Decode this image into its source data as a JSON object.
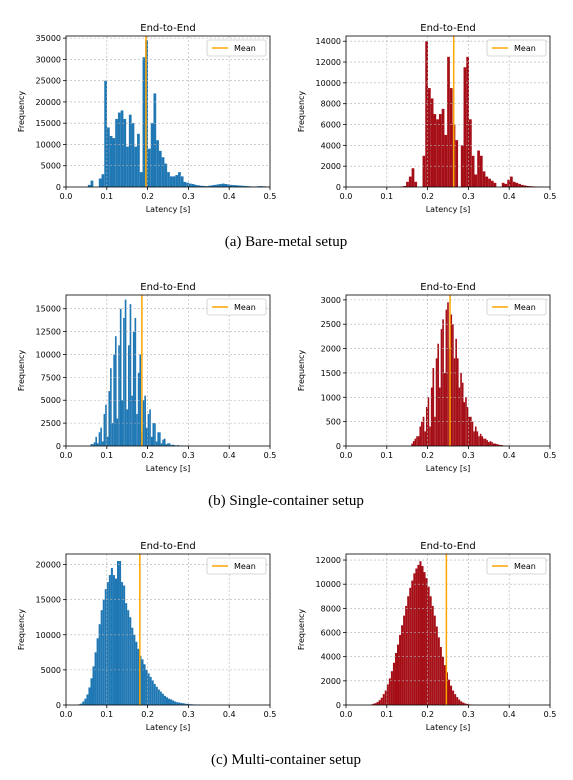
{
  "colors": {
    "blue": "#1f77b4",
    "red": "#a50e16",
    "mean": "#ffa500",
    "grid": "#b0b0b0"
  },
  "captions": [
    "(a) Bare-metal setup",
    "(b) Single-container setup",
    "(c) Multi-container setup"
  ],
  "chart_data": [
    {
      "type": "bar",
      "title": "End-to-End",
      "xlabel": "Latency [s]",
      "ylabel": "Frequency",
      "color": "blue",
      "legend": "Mean",
      "legend_loc": "upper right",
      "grid": true,
      "xlim": [
        0,
        0.5
      ],
      "ylim": [
        0,
        35500
      ],
      "xticks": [
        "0.0",
        "0.1",
        "0.2",
        "0.3",
        "0.4",
        "0.5"
      ],
      "yticks": [
        "0",
        "5000",
        "10000",
        "15000",
        "20000",
        "25000",
        "30000",
        "35000"
      ],
      "ytick_values": [
        0,
        5000,
        10000,
        15000,
        20000,
        25000,
        30000,
        35000
      ],
      "mean": 0.196,
      "bin_start": 0.0,
      "bin_width": 0.0067,
      "values": [
        0,
        0,
        0,
        0,
        0,
        0,
        0,
        0,
        500,
        1500,
        0,
        0,
        2000,
        3000,
        25000,
        14000,
        12000,
        11500,
        16000,
        17500,
        18000,
        16000,
        9500,
        17000,
        15000,
        9500,
        12500,
        3500,
        30500,
        34500,
        9000,
        15000,
        22000,
        11000,
        8500,
        7000,
        5500,
        3500,
        2500,
        2500,
        2800,
        3500,
        2500,
        1200,
        1000,
        800,
        700,
        500,
        400,
        300,
        250,
        200,
        300,
        400,
        500,
        600,
        700,
        800,
        700,
        600,
        500,
        450,
        400,
        350,
        300,
        250,
        200,
        150,
        100,
        80,
        200,
        200,
        150,
        100,
        100
      ]
    },
    {
      "type": "bar",
      "title": "End-to-End",
      "xlabel": "Latency [s]",
      "ylabel": "Frequency",
      "color": "red",
      "legend": "Mean",
      "legend_loc": "upper right",
      "grid": true,
      "xlim": [
        0,
        0.5
      ],
      "ylim": [
        0,
        14500
      ],
      "xticks": [
        "0.0",
        "0.1",
        "0.2",
        "0.3",
        "0.4",
        "0.5"
      ],
      "yticks": [
        "0",
        "2000",
        "4000",
        "6000",
        "8000",
        "10000",
        "12000",
        "14000"
      ],
      "ytick_values": [
        0,
        2000,
        4000,
        6000,
        8000,
        10000,
        12000,
        14000
      ],
      "mean": 0.264,
      "bin_start": 0.0,
      "bin_width": 0.0067,
      "values": [
        0,
        0,
        0,
        0,
        0,
        0,
        0,
        0,
        0,
        0,
        0,
        0,
        0,
        0,
        0,
        0,
        0,
        0,
        0,
        0,
        50,
        100,
        500,
        1000,
        1800,
        500,
        0,
        0,
        3000,
        14000,
        9500,
        8500,
        7000,
        6500,
        7000,
        7500,
        5000,
        12500,
        9500,
        6000,
        4500,
        0,
        4000,
        11500,
        12500,
        6500,
        3000,
        1200,
        3500,
        3000,
        1500,
        1000,
        800,
        600,
        400,
        0,
        0,
        400,
        300,
        700,
        1000,
        500,
        400,
        300,
        200,
        150,
        100,
        80,
        60,
        40,
        30,
        20,
        10,
        5,
        0
      ]
    },
    {
      "type": "bar",
      "title": "End-to-End",
      "xlabel": "Latency [s]",
      "ylabel": "Frequency",
      "color": "blue",
      "legend": "Mean",
      "legend_loc": "upper right",
      "grid": true,
      "xlim": [
        0,
        0.5
      ],
      "ylim": [
        0,
        16500
      ],
      "xticks": [
        "0.0",
        "0.1",
        "0.2",
        "0.3",
        "0.4",
        "0.5"
      ],
      "yticks": [
        "0",
        "2500",
        "5000",
        "7500",
        "10000",
        "12500",
        "15000"
      ],
      "ytick_values": [
        0,
        2500,
        5000,
        7500,
        10000,
        12500,
        15000
      ],
      "mean": 0.186,
      "bin_start": 0.0,
      "bin_width": 0.004,
      "values": [
        0,
        0,
        0,
        0,
        0,
        0,
        0,
        0,
        0,
        0,
        0,
        0,
        0,
        0,
        0,
        200,
        200,
        400,
        1000,
        300,
        1500,
        2000,
        500,
        3500,
        4500,
        1000,
        6000,
        8500,
        2500,
        10000,
        12000,
        3000,
        11000,
        15000,
        5000,
        14000,
        16000,
        4000,
        11000,
        15500,
        5500,
        12500,
        14000,
        3500,
        8000,
        10000,
        1500,
        5000,
        5500,
        2000,
        3500,
        4000,
        1000,
        2500,
        2500,
        500,
        1500,
        1500,
        300,
        700,
        800,
        200,
        300,
        300,
        100,
        150,
        100,
        50,
        100,
        50,
        30,
        50,
        30,
        20,
        20,
        10,
        10,
        5,
        5,
        0
      ]
    },
    {
      "type": "bar",
      "title": "End-to-End",
      "xlabel": "Latency [s]",
      "ylabel": "Frequency",
      "color": "red",
      "legend": "Mean",
      "legend_loc": "upper right",
      "grid": true,
      "xlim": [
        0,
        0.5
      ],
      "ylim": [
        0,
        3100
      ],
      "xticks": [
        "0.0",
        "0.1",
        "0.2",
        "0.3",
        "0.4",
        "0.5"
      ],
      "yticks": [
        "0",
        "500",
        "1000",
        "1500",
        "2000",
        "2500",
        "3000"
      ],
      "ytick_values": [
        0,
        500,
        1000,
        1500,
        2000,
        2500,
        3000
      ],
      "mean": 0.255,
      "bin_start": 0.0,
      "bin_width": 0.004,
      "values": [
        0,
        0,
        0,
        0,
        0,
        0,
        0,
        0,
        0,
        0,
        0,
        0,
        0,
        0,
        0,
        0,
        0,
        0,
        0,
        0,
        0,
        0,
        0,
        0,
        0,
        0,
        0,
        0,
        0,
        0,
        0,
        0,
        0,
        0,
        0,
        0,
        0,
        0,
        0,
        0,
        50,
        100,
        150,
        200,
        200,
        400,
        500,
        600,
        300,
        800,
        1000,
        400,
        1200,
        1600,
        600,
        1800,
        2100,
        1200,
        2400,
        2600,
        1500,
        2800,
        2950,
        2000,
        2700,
        2500,
        1800,
        2200,
        1800,
        1200,
        1500,
        1300,
        900,
        1000,
        800,
        600,
        600,
        500,
        300,
        400,
        300,
        200,
        250,
        200,
        150,
        150,
        120,
        80,
        100,
        80,
        50,
        50,
        40,
        30,
        20,
        20,
        10,
        5,
        5,
        0
      ]
    },
    {
      "type": "bar",
      "title": "End-to-End",
      "xlabel": "Latency [s]",
      "ylabel": "Frequency",
      "color": "blue",
      "legend": "Mean",
      "legend_loc": "upper right",
      "grid": true,
      "xlim": [
        0,
        0.5
      ],
      "ylim": [
        0,
        21500
      ],
      "xticks": [
        "0.0",
        "0.1",
        "0.2",
        "0.3",
        "0.4",
        "0.5"
      ],
      "yticks": [
        "0",
        "5000",
        "10000",
        "15000",
        "20000"
      ],
      "ytick_values": [
        0,
        5000,
        10000,
        15000,
        20000
      ],
      "mean": 0.181,
      "bin_start": 0.0,
      "bin_width": 0.005,
      "values": [
        0,
        0,
        0,
        0,
        0,
        0,
        100,
        200,
        500,
        900,
        1500,
        2500,
        3800,
        5500,
        7500,
        9500,
        11500,
        13500,
        15000,
        16500,
        17500,
        18500,
        19500,
        18500,
        18000,
        20500,
        20500,
        17500,
        17000,
        14500,
        13500,
        12500,
        11000,
        10000,
        9000,
        8000,
        7000,
        6500,
        5800,
        5000,
        4500,
        4000,
        3500,
        3000,
        2600,
        2200,
        1900,
        1600,
        1300,
        1100,
        900,
        800,
        650,
        500,
        400,
        350,
        300,
        250,
        200,
        150,
        120,
        100,
        80,
        60,
        50,
        40,
        30,
        20,
        10,
        5,
        0
      ]
    },
    {
      "type": "bar",
      "title": "End-to-End",
      "xlabel": "Latency [s]",
      "ylabel": "Frequency",
      "color": "red",
      "legend": "Mean",
      "legend_loc": "upper right",
      "grid": true,
      "xlim": [
        0,
        0.5
      ],
      "ylim": [
        0,
        12500
      ],
      "xticks": [
        "0.0",
        "0.1",
        "0.2",
        "0.3",
        "0.4",
        "0.5"
      ],
      "yticks": [
        "0",
        "2000",
        "4000",
        "6000",
        "8000",
        "10000",
        "12000"
      ],
      "ytick_values": [
        0,
        2000,
        4000,
        6000,
        8000,
        10000,
        12000
      ],
      "mean": 0.246,
      "bin_start": 0.0,
      "bin_width": 0.005,
      "values": [
        0,
        0,
        0,
        0,
        0,
        0,
        0,
        0,
        0,
        0,
        0,
        0,
        50,
        100,
        150,
        250,
        400,
        600,
        900,
        1200,
        1700,
        2200,
        2800,
        3500,
        4300,
        5000,
        5800,
        6600,
        7400,
        8200,
        9000,
        9700,
        10300,
        10900,
        11300,
        11600,
        11900,
        11500,
        11000,
        10500,
        9800,
        9000,
        8200,
        7400,
        6500,
        5600,
        4800,
        4000,
        3300,
        2700,
        2100,
        1600,
        1200,
        900,
        650,
        450,
        300,
        200,
        130,
        80,
        50,
        30,
        20,
        10,
        5,
        0
      ]
    }
  ]
}
